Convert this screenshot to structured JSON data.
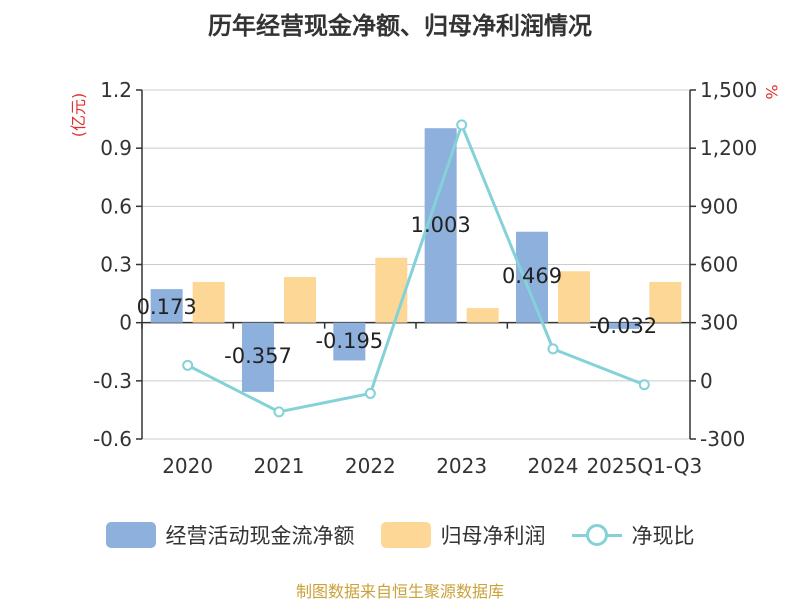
{
  "chart_data": {
    "type": "bar",
    "title": "历年经营现金净额、归母净利润情况",
    "categories": [
      "2020",
      "2021",
      "2022",
      "2023",
      "2024",
      "2025Q1-Q3"
    ],
    "series": [
      {
        "name": "经营活动现金流净额",
        "type": "bar",
        "axis": "left",
        "values": [
          0.173,
          -0.357,
          -0.195,
          1.003,
          0.469,
          -0.032
        ],
        "color": "#8eb0dc"
      },
      {
        "name": "归母净利润",
        "type": "bar",
        "axis": "left",
        "values": [
          0.21,
          0.235,
          0.335,
          0.075,
          0.265,
          0.21
        ],
        "color": "#fdd796"
      },
      {
        "name": "净现比",
        "type": "line",
        "axis": "right",
        "values": [
          80,
          -160,
          -65,
          1320,
          165,
          -20
        ],
        "color": "#84d2d8"
      }
    ],
    "data_labels": [
      "0.173",
      "-0.357",
      "-0.195",
      "1.003",
      "0.469",
      "-0.032"
    ],
    "left_axis": {
      "unit": "(亿元)",
      "ylim": [
        -0.6,
        1.2
      ],
      "ticks": [
        1.2,
        0.9,
        0.6,
        0.3,
        0,
        -0.3,
        -0.6
      ],
      "tick_labels": [
        "1.2",
        "0.9",
        "0.6",
        "0.3",
        "0",
        "-0.3",
        "-0.6"
      ]
    },
    "right_axis": {
      "unit": "%",
      "ylim": [
        -300,
        1500
      ],
      "ticks": [
        1500,
        1200,
        900,
        600,
        300,
        0,
        -300
      ],
      "tick_labels": [
        "1,500",
        "1,200",
        "900",
        "600",
        "300",
        "0",
        "-300"
      ]
    },
    "legend_position": "bottom",
    "grid": true
  },
  "legend": {
    "items": [
      {
        "label": "经营活动现金流净额",
        "color": "#8eb0dc",
        "kind": "bar"
      },
      {
        "label": "归母净利润",
        "color": "#fdd796",
        "kind": "bar"
      },
      {
        "label": "净现比",
        "color": "#84d2d8",
        "kind": "line"
      }
    ]
  },
  "source": "制图数据来自恒生聚源数据库"
}
